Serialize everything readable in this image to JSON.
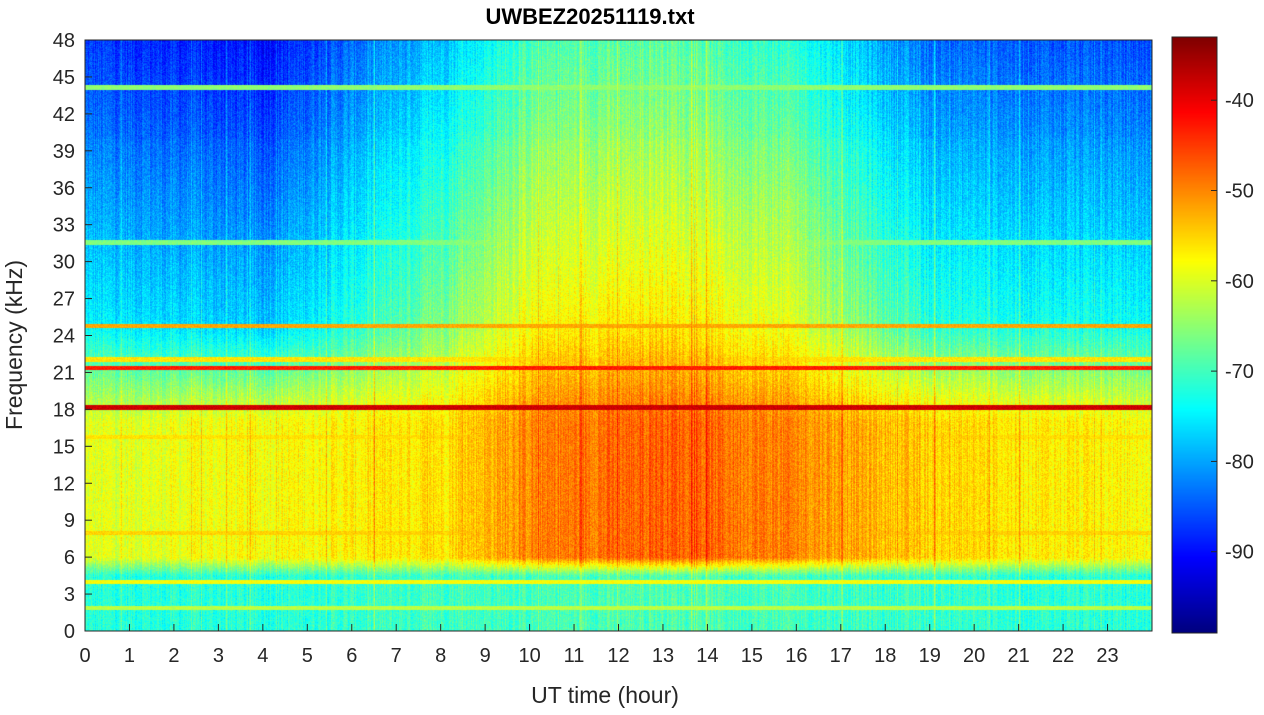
{
  "chart_data": {
    "type": "heatmap",
    "title": "UWBEZ20251119.txt",
    "xlabel": "UT time (hour)",
    "ylabel": "Frequency (kHz)",
    "xlim": [
      0,
      24
    ],
    "ylim": [
      0,
      48
    ],
    "x_ticks": [
      0,
      1,
      2,
      3,
      4,
      5,
      6,
      7,
      8,
      9,
      10,
      11,
      12,
      13,
      14,
      15,
      16,
      17,
      18,
      19,
      20,
      21,
      22,
      23
    ],
    "y_ticks": [
      0,
      3,
      6,
      9,
      12,
      15,
      18,
      21,
      24,
      27,
      30,
      33,
      36,
      39,
      42,
      45,
      48
    ],
    "colorbar": {
      "colormap": "jet",
      "range": [
        -99,
        -33
      ],
      "ticks": [
        -40,
        -50,
        -60,
        -70,
        -80,
        -90
      ]
    },
    "background_profile_by_hour": [
      {
        "hour": 0,
        "high_band_db": -87,
        "mid_band_db": -60,
        "low_band_db": -72
      },
      {
        "hour": 4,
        "high_band_db": -90,
        "mid_band_db": -58,
        "low_band_db": -72
      },
      {
        "hour": 8,
        "high_band_db": -78,
        "mid_band_db": -56,
        "low_band_db": -70
      },
      {
        "hour": 10,
        "high_band_db": -70,
        "mid_band_db": -50,
        "low_band_db": -70
      },
      {
        "hour": 13,
        "high_band_db": -68,
        "mid_band_db": -47,
        "low_band_db": -69
      },
      {
        "hour": 16,
        "high_band_db": -72,
        "mid_band_db": -50,
        "low_band_db": -70
      },
      {
        "hour": 19,
        "high_band_db": -84,
        "mid_band_db": -55,
        "low_band_db": -71
      },
      {
        "hour": 24,
        "high_band_db": -86,
        "mid_band_db": -58,
        "low_band_db": -72
      }
    ],
    "transmitter_lines_khz": [
      {
        "freq": 18.2,
        "db": -38
      },
      {
        "freq": 21.4,
        "db": -43
      },
      {
        "freq": 24.8,
        "db": -52
      },
      {
        "freq": 22.1,
        "db": -56
      },
      {
        "freq": 44.2,
        "db": -65
      },
      {
        "freq": 31.6,
        "db": -66
      },
      {
        "freq": 4.0,
        "db": -58
      },
      {
        "freq": 8.0,
        "db": -55
      },
      {
        "freq": 15.8,
        "db": -56
      },
      {
        "freq": 1.9,
        "db": -62
      }
    ]
  }
}
